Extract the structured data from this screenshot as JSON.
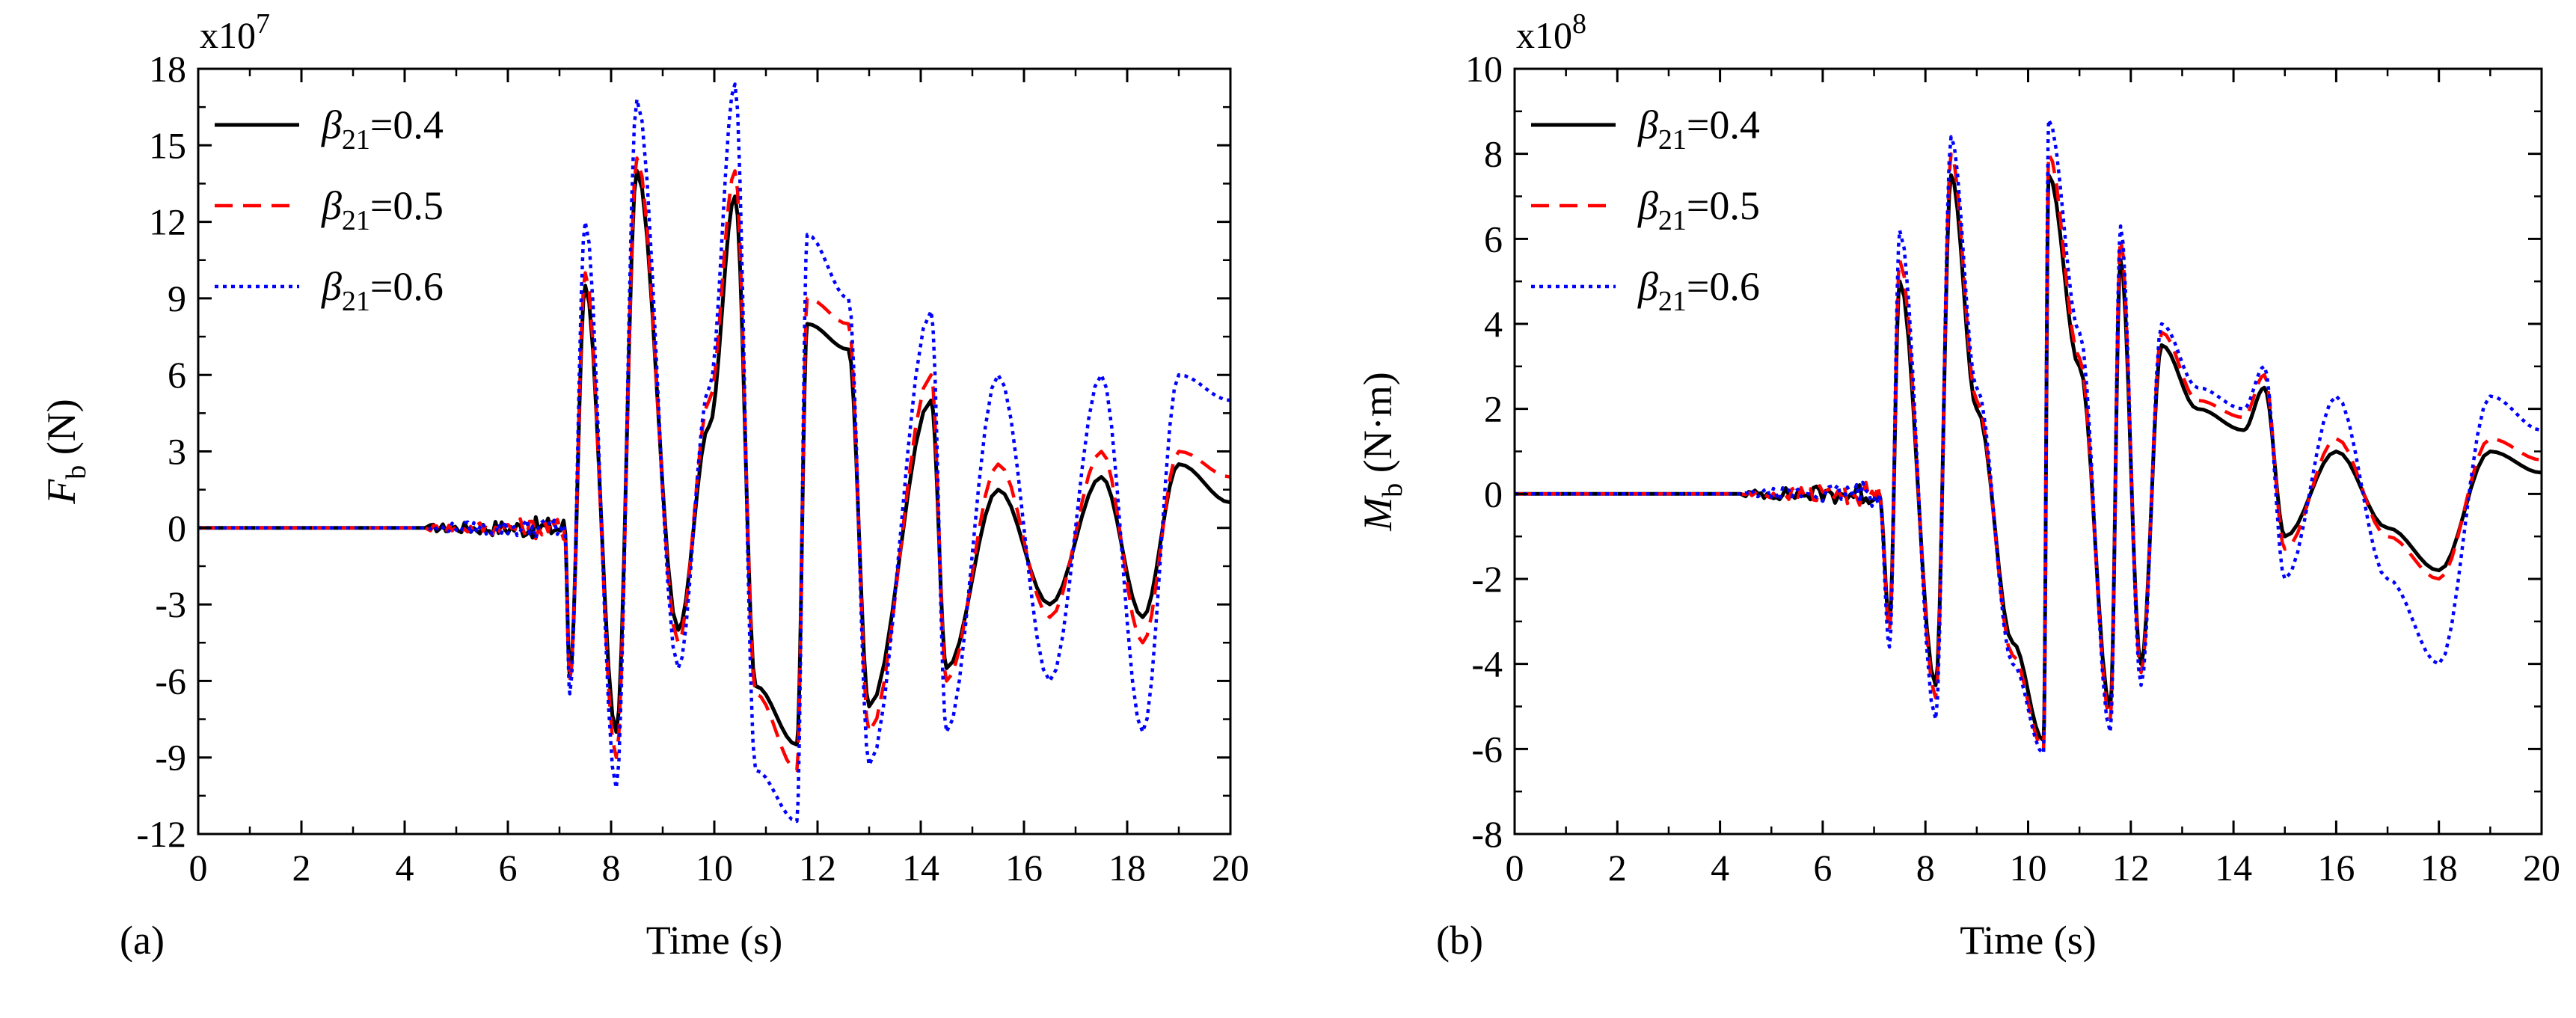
{
  "chart_data": [
    {
      "panel_label": "(a)",
      "type": "line",
      "ylabel": {
        "symbol": "F",
        "subscript": "b",
        "unit": " (N)"
      },
      "xlabel": "Time (s)",
      "exponent": {
        "base": "x10",
        "power": "7"
      },
      "xlim": [
        0,
        20
      ],
      "ylim": [
        -12,
        18
      ],
      "xticks": [
        0,
        2,
        4,
        6,
        8,
        10,
        12,
        14,
        16,
        18,
        20
      ],
      "yticks": [
        -12,
        -9,
        -6,
        -3,
        0,
        3,
        6,
        9,
        12,
        15,
        18
      ],
      "grid": false,
      "legend_position": "top-left",
      "series": [
        {
          "name": {
            "symbol": "β",
            "subscript": "21",
            "value": "=0.4"
          },
          "color": "#000000",
          "style": "solid",
          "peaks": [
            [
              7.2,
              -5.8
            ],
            [
              7.5,
              9.5
            ],
            [
              8.1,
              -8.0
            ],
            [
              8.5,
              14.0
            ],
            [
              9.3,
              -4.0
            ],
            [
              9.9,
              4.0
            ],
            [
              10.4,
              13.0
            ],
            [
              10.8,
              -6.2
            ],
            [
              11.6,
              -8.5
            ],
            [
              11.8,
              8.0
            ],
            [
              12.6,
              7.0
            ],
            [
              13.0,
              -7.0
            ],
            [
              14.2,
              5.0
            ],
            [
              14.5,
              -5.5
            ],
            [
              15.5,
              1.5
            ],
            [
              16.5,
              -3.0
            ],
            [
              17.5,
              2.0
            ],
            [
              18.3,
              -3.5
            ],
            [
              19.0,
              2.5
            ],
            [
              20.0,
              1.0
            ]
          ]
        },
        {
          "name": {
            "symbol": "β",
            "subscript": "21",
            "value": "=0.5"
          },
          "color": "#ff0000",
          "style": "dashed",
          "peaks": [
            [
              7.2,
              -6.0
            ],
            [
              7.5,
              10.0
            ],
            [
              8.1,
              -9.0
            ],
            [
              8.5,
              14.5
            ],
            [
              9.3,
              -4.5
            ],
            [
              9.9,
              5.0
            ],
            [
              10.4,
              14.0
            ],
            [
              10.8,
              -6.5
            ],
            [
              11.6,
              -9.5
            ],
            [
              11.8,
              9.0
            ],
            [
              12.6,
              8.0
            ],
            [
              13.0,
              -8.0
            ],
            [
              14.2,
              6.0
            ],
            [
              14.5,
              -6.0
            ],
            [
              15.5,
              2.5
            ],
            [
              16.5,
              -3.5
            ],
            [
              17.5,
              3.0
            ],
            [
              18.3,
              -4.5
            ],
            [
              19.0,
              3.0
            ],
            [
              20.0,
              2.0
            ]
          ]
        },
        {
          "name": {
            "symbol": "β",
            "subscript": "21",
            "value": "=0.6"
          },
          "color": "#0000ff",
          "style": "dotted",
          "peaks": [
            [
              7.2,
              -6.5
            ],
            [
              7.5,
              12.0
            ],
            [
              8.1,
              -10.2
            ],
            [
              8.5,
              16.8
            ],
            [
              9.3,
              -5.5
            ],
            [
              9.9,
              5.5
            ],
            [
              10.4,
              17.4
            ],
            [
              10.8,
              -9.5
            ],
            [
              11.6,
              -11.5
            ],
            [
              11.8,
              11.5
            ],
            [
              12.6,
              9.0
            ],
            [
              13.0,
              -9.3
            ],
            [
              14.2,
              8.5
            ],
            [
              14.5,
              -8.0
            ],
            [
              15.5,
              6.0
            ],
            [
              16.5,
              -6.0
            ],
            [
              17.5,
              6.0
            ],
            [
              18.3,
              -8.0
            ],
            [
              19.0,
              6.0
            ],
            [
              20.0,
              5.0
            ]
          ]
        }
      ]
    },
    {
      "panel_label": "(b)",
      "type": "line",
      "ylabel": {
        "symbol": "M",
        "subscript": "b",
        "unit": " (N·m)"
      },
      "xlabel": "Time (s)",
      "exponent": {
        "base": "x10",
        "power": "8"
      },
      "xlim": [
        0,
        20
      ],
      "ylim": [
        -8,
        10
      ],
      "xticks": [
        0,
        2,
        4,
        6,
        8,
        10,
        12,
        14,
        16,
        18,
        20
      ],
      "yticks": [
        -8,
        -6,
        -4,
        -2,
        0,
        2,
        4,
        6,
        8,
        10
      ],
      "grid": false,
      "legend_position": "top-left",
      "series": [
        {
          "name": {
            "symbol": "β",
            "subscript": "21",
            "value": "=0.4"
          },
          "color": "#000000",
          "style": "solid",
          "peaks": [
            [
              7.3,
              -3.0
            ],
            [
              7.5,
              5.0
            ],
            [
              8.2,
              -4.5
            ],
            [
              8.5,
              7.5
            ],
            [
              9.0,
              2.0
            ],
            [
              9.7,
              -3.5
            ],
            [
              10.3,
              -5.8
            ],
            [
              10.4,
              7.5
            ],
            [
              11.0,
              3.0
            ],
            [
              11.6,
              -5.0
            ],
            [
              11.8,
              5.5
            ],
            [
              12.2,
              -4.0
            ],
            [
              12.6,
              3.5
            ],
            [
              13.3,
              2.0
            ],
            [
              14.2,
              1.5
            ],
            [
              14.6,
              2.5
            ],
            [
              15.0,
              -1.0
            ],
            [
              16.0,
              1.0
            ],
            [
              17.0,
              -0.8
            ],
            [
              18.0,
              -1.8
            ],
            [
              19.0,
              1.0
            ],
            [
              20.0,
              0.5
            ]
          ]
        },
        {
          "name": {
            "symbol": "β",
            "subscript": "21",
            "value": "=0.5"
          },
          "color": "#ff0000",
          "style": "dashed",
          "peaks": [
            [
              7.3,
              -3.2
            ],
            [
              7.5,
              5.5
            ],
            [
              8.2,
              -4.8
            ],
            [
              8.5,
              8.0
            ],
            [
              9.0,
              2.2
            ],
            [
              9.7,
              -3.8
            ],
            [
              10.3,
              -6.0
            ],
            [
              10.4,
              8.0
            ],
            [
              11.0,
              3.2
            ],
            [
              11.6,
              -5.3
            ],
            [
              11.8,
              6.0
            ],
            [
              12.2,
              -4.2
            ],
            [
              12.6,
              3.8
            ],
            [
              13.3,
              2.2
            ],
            [
              14.2,
              1.8
            ],
            [
              14.6,
              2.8
            ],
            [
              15.0,
              -1.3
            ],
            [
              16.0,
              1.3
            ],
            [
              17.0,
              -1.0
            ],
            [
              18.0,
              -2.0
            ],
            [
              19.0,
              1.3
            ],
            [
              20.0,
              0.8
            ]
          ]
        },
        {
          "name": {
            "symbol": "β",
            "subscript": "21",
            "value": "=0.6"
          },
          "color": "#0000ff",
          "style": "dotted",
          "peaks": [
            [
              7.3,
              -3.6
            ],
            [
              7.5,
              6.2
            ],
            [
              8.2,
              -5.3
            ],
            [
              8.5,
              8.4
            ],
            [
              9.0,
              2.5
            ],
            [
              9.7,
              -4.0
            ],
            [
              10.3,
              -6.1
            ],
            [
              10.4,
              8.8
            ],
            [
              11.0,
              3.8
            ],
            [
              11.6,
              -5.6
            ],
            [
              11.8,
              6.3
            ],
            [
              12.2,
              -4.5
            ],
            [
              12.6,
              4.0
            ],
            [
              13.3,
              2.5
            ],
            [
              14.2,
              2.0
            ],
            [
              14.6,
              3.0
            ],
            [
              15.0,
              -2.0
            ],
            [
              16.0,
              2.3
            ],
            [
              17.0,
              -2.0
            ],
            [
              18.0,
              -4.0
            ],
            [
              19.0,
              2.3
            ],
            [
              20.0,
              1.5
            ]
          ]
        }
      ]
    }
  ]
}
